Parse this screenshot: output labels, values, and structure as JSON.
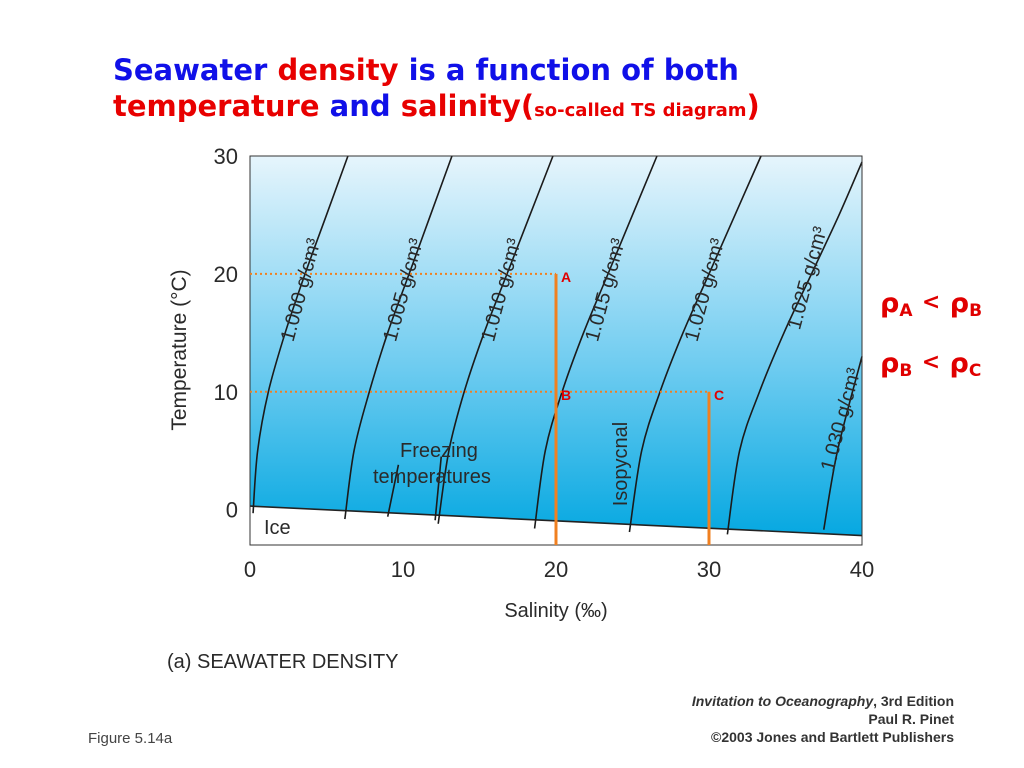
{
  "title": {
    "part1": "Seawater",
    "part2": "density",
    "part3": "is a function of both",
    "part4": "temperature",
    "part5": "and",
    "part6": "salinity",
    "paren_open": "(",
    "paren_small": "so-called TS diagram",
    "paren_close": ")"
  },
  "relations": [
    {
      "left": "ρ",
      "left_sub": "A",
      "op": "<",
      "right": "ρ",
      "right_sub": "B"
    },
    {
      "left": "ρ",
      "left_sub": "B",
      "op": "<",
      "right": "ρ",
      "right_sub": "C"
    }
  ],
  "credit": {
    "line1_italic": "Invitation to Oceanography",
    "line1_rest": ", 3rd Edition",
    "line2": "Paul R. Pinet",
    "line3": "©2003 Jones and Bartlett Publishers"
  },
  "figure_label": "Figure 5.14a",
  "colors": {
    "title_blue": "#1010e8",
    "title_red": "#e80000",
    "plot_top": "#e6f5fc",
    "plot_bottom": "#00a6e0",
    "marker_orange": "#f08020",
    "marker_label_red": "#e00000"
  },
  "chart_data": {
    "type": "line",
    "xlabel": "Salinity (‰)",
    "ylabel": "Temperature (°C)",
    "caption": "(a) SEAWATER DENSITY",
    "xlim": [
      0,
      40
    ],
    "ylim": [
      -3,
      30
    ],
    "xticks": [
      0,
      10,
      20,
      30,
      40
    ],
    "yticks": [
      0,
      10,
      20,
      30
    ],
    "xtick_labels": [
      "0",
      "10",
      "20",
      "30",
      "40"
    ],
    "ytick_labels": [
      "0",
      "10",
      "20",
      "30"
    ],
    "ice_label": "Ice",
    "freezing_label_line1": "Freezing",
    "freezing_label_line2": "temperatures",
    "isopycnal_label": "Isopycnal",
    "ice_boundary": {
      "x": [
        0,
        40
      ],
      "y": [
        0.3,
        -2.2
      ]
    },
    "series": [
      {
        "name": "1.000 g/cm³",
        "x": [
          0.2,
          0.5,
          1.2,
          2.3,
          3.6,
          5.0,
          6.4
        ],
        "y": [
          -0.3,
          5,
          10,
          15,
          20,
          25,
          30
        ]
      },
      {
        "name": "1.005 g/cm³",
        "x": [
          6.2,
          6.8,
          7.8,
          9.0,
          10.4,
          11.8,
          13.2
        ],
        "y": [
          -0.8,
          5,
          10,
          15,
          20,
          25,
          30
        ]
      },
      {
        "name": "1.010 g/cm³",
        "x": [
          12.3,
          13.0,
          14.0,
          15.3,
          16.8,
          18.3,
          19.8
        ],
        "y": [
          -1.2,
          5,
          10,
          15,
          20,
          25,
          30
        ]
      },
      {
        "name": "1.015 g/cm³",
        "x": [
          18.6,
          19.3,
          20.4,
          21.8,
          23.4,
          25.0,
          26.6
        ],
        "y": [
          -1.6,
          5,
          10,
          15,
          20,
          25,
          30
        ]
      },
      {
        "name": "1.020 g/cm³",
        "x": [
          24.8,
          25.6,
          26.8,
          28.3,
          30.0,
          31.7,
          33.4
        ],
        "y": [
          -1.9,
          5,
          10,
          15,
          20,
          25,
          30
        ]
      },
      {
        "name": "1.025 g/cm³",
        "x": [
          31.2,
          32.0,
          33.3,
          34.9,
          36.7,
          38.5,
          40.0
        ],
        "y": [
          -2.1,
          5,
          10,
          15,
          20,
          25,
          29.5
        ]
      },
      {
        "name": "1.030 g/cm³",
        "x": [
          37.5,
          38.4,
          40.0
        ],
        "y": [
          -1.7,
          5,
          13
        ]
      }
    ],
    "points": [
      {
        "label": "A",
        "x": 20,
        "y": 20
      },
      {
        "label": "B",
        "x": 20,
        "y": 10
      },
      {
        "label": "C",
        "x": 30,
        "y": 10
      }
    ],
    "grid": false,
    "legend": "none"
  }
}
